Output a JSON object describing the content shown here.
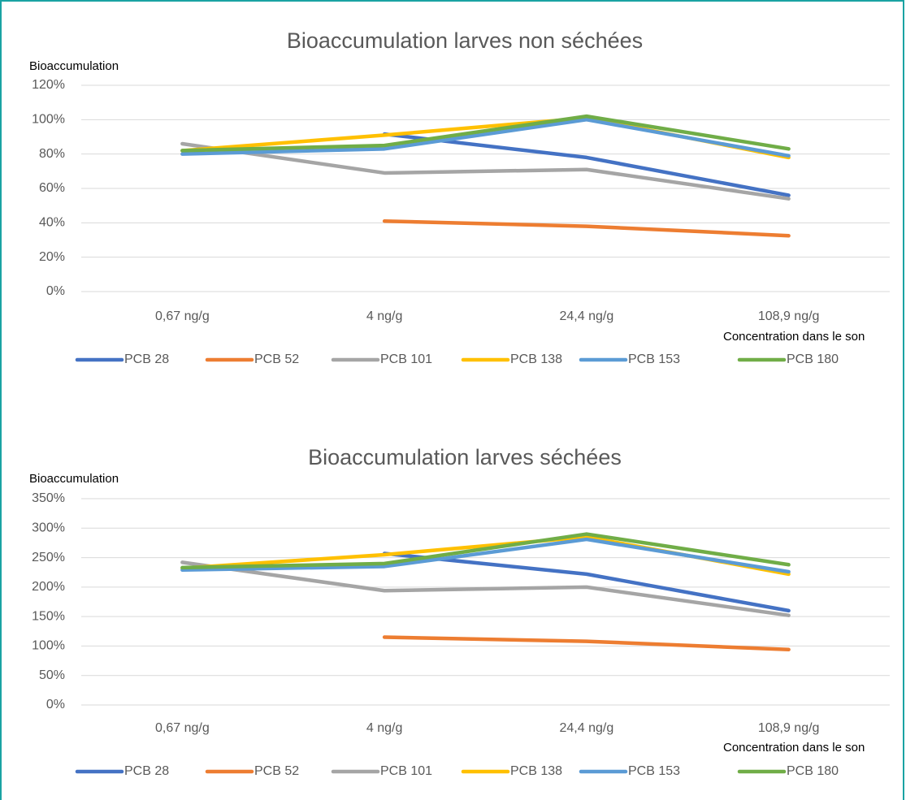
{
  "chart_data": [
    {
      "type": "line",
      "title": "Bioaccumulation larves non séchées",
      "y_label": "Bioaccumulation",
      "x_label": "Concentration dans le son",
      "categories": [
        "0,67 ng/g",
        "4 ng/g",
        "24,4 ng/g",
        "108,9 ng/g"
      ],
      "ylim": [
        0,
        120
      ],
      "yticks": [
        {
          "value": 0,
          "label": "0%"
        },
        {
          "value": 20,
          "label": "20%"
        },
        {
          "value": 40,
          "label": "40%"
        },
        {
          "value": 60,
          "label": "60%"
        },
        {
          "value": 80,
          "label": "80%"
        },
        {
          "value": 100,
          "label": "100%"
        },
        {
          "value": 120,
          "label": "120%"
        }
      ],
      "grid": true,
      "legend": "bottom",
      "series": [
        {
          "name": "PCB 28",
          "color": "#4472c4",
          "values": [
            null,
            91.6,
            78,
            56
          ]
        },
        {
          "name": "PCB 52",
          "color": "#ed7d31",
          "values": [
            null,
            41,
            38,
            32.5
          ]
        },
        {
          "name": "PCB 101",
          "color": "#a5a5a5",
          "values": [
            86,
            69,
            71,
            54
          ]
        },
        {
          "name": "PCB 138",
          "color": "#ffc000",
          "values": [
            82,
            91,
            101,
            78
          ]
        },
        {
          "name": "PCB 153",
          "color": "#5b9bd5",
          "values": [
            80,
            83,
            100,
            79
          ]
        },
        {
          "name": "PCB 180",
          "color": "#70ad47",
          "values": [
            82,
            85,
            102,
            83
          ]
        }
      ]
    },
    {
      "type": "line",
      "title": "Bioaccumulation larves séchées",
      "y_label": "Bioaccumulation",
      "x_label": "Concentration dans le son",
      "categories": [
        "0,67 ng/g",
        "4 ng/g",
        "24,4 ng/g",
        "108,9 ng/g"
      ],
      "ylim": [
        0,
        350
      ],
      "yticks": [
        {
          "value": 0,
          "label": "0%"
        },
        {
          "value": 50,
          "label": "50%"
        },
        {
          "value": 100,
          "label": "100%"
        },
        {
          "value": 150,
          "label": "150%"
        },
        {
          "value": 200,
          "label": "200%"
        },
        {
          "value": 250,
          "label": "250%"
        },
        {
          "value": 300,
          "label": "300%"
        },
        {
          "value": 350,
          "label": "350%"
        }
      ],
      "grid": true,
      "legend": "bottom",
      "series": [
        {
          "name": "PCB 28",
          "color": "#4472c4",
          "values": [
            null,
            257,
            222,
            160
          ]
        },
        {
          "name": "PCB 52",
          "color": "#ed7d31",
          "values": [
            null,
            115,
            108,
            94
          ]
        },
        {
          "name": "PCB 101",
          "color": "#a5a5a5",
          "values": [
            242,
            194,
            200,
            152
          ]
        },
        {
          "name": "PCB 138",
          "color": "#ffc000",
          "values": [
            232,
            255,
            285,
            222
          ]
        },
        {
          "name": "PCB 153",
          "color": "#5b9bd5",
          "values": [
            229,
            235,
            281,
            226
          ]
        },
        {
          "name": "PCB 180",
          "color": "#70ad47",
          "values": [
            233,
            240,
            290,
            238
          ]
        }
      ]
    }
  ]
}
